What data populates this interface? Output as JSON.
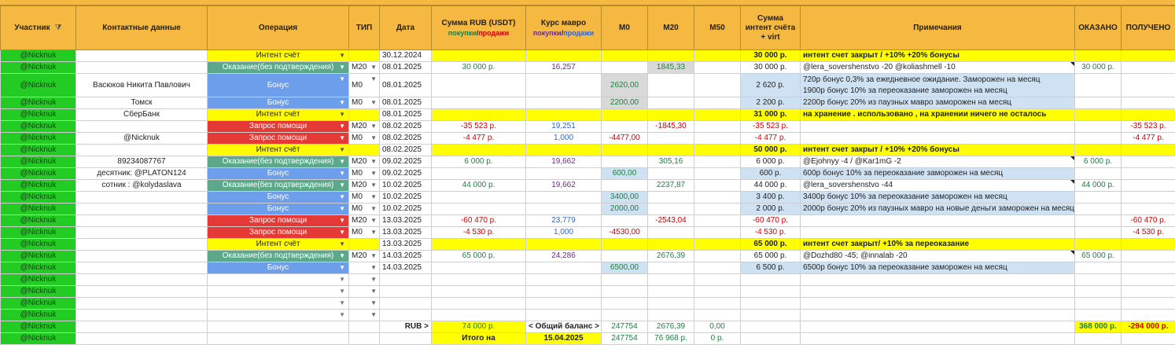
{
  "headers": {
    "participant": "Участник",
    "contacts": "Контактные данные",
    "operation": "Операция",
    "type": "ТИП",
    "date": "Дата",
    "sum_title": "Сумма RUB (USDT)",
    "sum_buy": "покупки",
    "sum_sell": "продажи",
    "rate_title": "Курс мавро",
    "rate_buy": "покупки",
    "rate_sell": "продажи",
    "m0": "М0",
    "m20": "М20",
    "m50": "М50",
    "intent_sum": "Сумма интент счёта + virt",
    "notes": "Примечания",
    "rendered": "ОКАЗАНО",
    "received": "ПОЛУЧЕНО"
  },
  "rows": [
    {
      "participant": "@Nicknuk",
      "contact": "",
      "op": "Интент счёт",
      "opkind": "intent",
      "typ": "",
      "date": "30.12.2024",
      "sum": "",
      "rate": "",
      "m0": "",
      "m20": "",
      "m50": "",
      "isum": "30 000 р.",
      "note": "интент счет закрыт /  +10%  +20% бонусы",
      "rendered": "",
      "received": "",
      "style": "yl"
    },
    {
      "participant": "@Nicknuk",
      "contact": "",
      "op": "Оказание(без подтверждения)",
      "opkind": "svc",
      "typ": "M20",
      "date": "08.01.2025",
      "sum": "30 000 р.",
      "rate": "16,257",
      "m0": "",
      "m20": "1845,33",
      "m50": "",
      "isum": "30 000 р.",
      "note": "@lera_sovershenstvo -20  @koliashmell -10",
      "rendered": "30 000 р.",
      "received": "",
      "style": "normal"
    },
    {
      "participant": "@Nicknuk",
      "contact": "Васюков Никита Павлович",
      "op": "Бонус",
      "opkind": "bonus",
      "typ": "M0",
      "date": "08.01.2025",
      "sum": "",
      "rate": "",
      "m0": "2620,00",
      "m20": "",
      "m50": "",
      "isum": "2 620 р.",
      "note": "720р  бонус 0,3% за ежедневное ожидание. Заморожен на месяц",
      "note2": "1900р бонус 10% за переоказание заморожен на месяц",
      "rendered": "",
      "received": "",
      "style": "bonus2"
    },
    {
      "participant": "@Nicknuk",
      "contact": "Томск",
      "op": "Бонус",
      "opkind": "bonus",
      "typ": "M0",
      "date": "08.01.2025",
      "sum": "",
      "rate": "",
      "m0": "2200,00",
      "m20": "",
      "m50": "",
      "isum": "2 200 р.",
      "note": "2200р бонус 20% из паузных мавро заморожен на месяц",
      "rendered": "",
      "received": "",
      "style": "bonus"
    },
    {
      "participant": "@Nicknuk",
      "contact": "СберБанк",
      "op": "Интент счёт",
      "opkind": "intent",
      "typ": "",
      "date": "08.01.2025",
      "sum": "",
      "rate": "",
      "m0": "",
      "m20": "",
      "m50": "",
      "isum": "31 000 р.",
      "note": "на хранение . использовано , на хранении ничего не осталось",
      "rendered": "",
      "received": "",
      "style": "yl"
    },
    {
      "participant": "@Nicknuk",
      "contact": "",
      "op": "Запрос помощи",
      "opkind": "help",
      "typ": "M20",
      "date": "08.02.2025",
      "sum": "-35 523 р.",
      "rate": "19,251",
      "m0": "",
      "m20": "-1845,30",
      "m50": "",
      "isum": "-35 523 р.",
      "note": "",
      "rendered": "",
      "received": "-35 523 р.",
      "style": "help"
    },
    {
      "participant": "@Nicknuk",
      "contact": "@Nicknuk",
      "op": "Запрос помощи",
      "opkind": "help",
      "typ": "M0",
      "date": "08.02.2025",
      "sum": "-4 477 р.",
      "rate": "1,000",
      "m0": "-4477,00",
      "m20": "",
      "m50": "",
      "isum": "-4 477 р.",
      "note": "",
      "rendered": "",
      "received": "-4 477 р.",
      "style": "help"
    },
    {
      "participant": "@Nicknuk",
      "contact": "",
      "op": "Интент счёт",
      "opkind": "intent",
      "typ": "",
      "date": "08.02.2025",
      "sum": "",
      "rate": "",
      "m0": "",
      "m20": "",
      "m50": "",
      "isum": "50 000 р.",
      "note": "интент счет закрыт /  +10%  +20% бонусы",
      "rendered": "",
      "received": "",
      "style": "yl"
    },
    {
      "participant": "@Nicknuk",
      "contact": "89234087767",
      "op": "Оказание(без подтверждения)",
      "opkind": "svc",
      "typ": "M20",
      "date": "09.02.2025",
      "sum": "6 000 р.",
      "rate": "19,662",
      "m0": "",
      "m20": "305,16",
      "m50": "",
      "isum": "6 000 р.",
      "note": "@Ejohnyy -4  / @Kar1mG -2",
      "rendered": "6 000 р.",
      "received": "",
      "style": "normal"
    },
    {
      "participant": "@Nicknuk",
      "contact": "десятник: @PLATON124",
      "op": "Бонус",
      "opkind": "bonus",
      "typ": "M0",
      "date": "09.02.2025",
      "sum": "",
      "rate": "",
      "m0": "600,00",
      "m20": "",
      "m50": "",
      "isum": "600 р.",
      "note": "600р бонус 10% за переоказание заморожен на месяц",
      "rendered": "",
      "received": "",
      "style": "bonus"
    },
    {
      "participant": "@Nicknuk",
      "contact": "сотник : @kolydaslava",
      "op": "Оказание(без подтверждения)",
      "opkind": "svc",
      "typ": "M20",
      "date": "10.02.2025",
      "sum": "44 000 р.",
      "rate": "19,662",
      "m0": "",
      "m20": "2237,87",
      "m50": "",
      "isum": "44 000 р.",
      "note": "@lera_sovershenstvo -44",
      "rendered": "44 000 р.",
      "received": "",
      "style": "normal"
    },
    {
      "participant": "@Nicknuk",
      "contact": "",
      "op": "Бонус",
      "opkind": "bonus",
      "typ": "M0",
      "date": "10.02.2025",
      "sum": "",
      "rate": "",
      "m0": "3400,00",
      "m20": "",
      "m50": "",
      "isum": "3 400 р.",
      "note": "3400р бонус 10% за переоказание заморожен на месяц",
      "rendered": "",
      "received": "",
      "style": "bonus"
    },
    {
      "participant": "@Nicknuk",
      "contact": "",
      "op": "Бонус",
      "opkind": "bonus",
      "typ": "M0",
      "date": "10.02.2025",
      "sum": "",
      "rate": "",
      "m0": "2000,00",
      "m20": "",
      "m50": "",
      "isum": "2 000 р.",
      "note": "2000р бонус 20% из паузных мавро на новые деньги заморожен на месяц",
      "rendered": "",
      "received": "",
      "style": "bonus"
    },
    {
      "participant": "@Nicknuk",
      "contact": "",
      "op": "Запрос помощи",
      "opkind": "help",
      "typ": "M20",
      "date": "13.03.2025",
      "sum": "-60 470 р.",
      "rate": "23,779",
      "m0": "",
      "m20": "-2543,04",
      "m50": "",
      "isum": "-60 470 р.",
      "note": "",
      "rendered": "",
      "received": "-60 470 р.",
      "style": "help"
    },
    {
      "participant": "@Nicknuk",
      "contact": "",
      "op": "Запрос помощи",
      "opkind": "help",
      "typ": "M0",
      "date": "13.03.2025",
      "sum": "-4 530 р.",
      "rate": "1,000",
      "m0": "-4530,00",
      "m20": "",
      "m50": "",
      "isum": "-4 530 р.",
      "note": "",
      "rendered": "",
      "received": "-4 530 р.",
      "style": "help"
    },
    {
      "participant": "@Nicknuk",
      "contact": "",
      "op": "Интент счёт",
      "opkind": "intent",
      "typ": "",
      "date": "13.03.2025",
      "sum": "",
      "rate": "",
      "m0": "",
      "m20": "",
      "m50": "",
      "isum": "65 000 р.",
      "note": " интент счет закрыт/ +10% за переоказание",
      "rendered": "",
      "received": "",
      "style": "yl"
    },
    {
      "participant": "@Nicknuk",
      "contact": "",
      "op": "Оказание(без подтверждения)",
      "opkind": "svc",
      "typ": "M20",
      "date": "14.03.2025",
      "sum": "65 000 р.",
      "rate": "24,286",
      "m0": "",
      "m20": "2676,39",
      "m50": "",
      "isum": "65 000 р.",
      "note": "@Dozhd80 -45; @innalab -20",
      "rendered": "65 000 р.",
      "received": "",
      "style": "normal"
    },
    {
      "participant": "@Nicknuk",
      "contact": "",
      "op": "Бонус",
      "opkind": "bonus",
      "typ": "",
      "date": "14.03.2025",
      "sum": "",
      "rate": "",
      "m0": "6500,00",
      "m20": "",
      "m50": "",
      "isum": "6 500 р.",
      "note": "6500р бонус 10% за переоказание заморожен на месяц",
      "rendered": "",
      "received": "",
      "style": "bonus"
    },
    {
      "participant": "@Nicknuk",
      "contact": "",
      "op": "",
      "opkind": "empty",
      "typ": "",
      "date": "",
      "sum": "",
      "rate": "",
      "m0": "",
      "m20": "",
      "m50": "",
      "isum": "",
      "note": "",
      "rendered": "",
      "received": "",
      "style": "empty"
    },
    {
      "participant": "@Nicknuk",
      "contact": "",
      "op": "",
      "opkind": "empty",
      "typ": "",
      "date": "",
      "sum": "",
      "rate": "",
      "m0": "",
      "m20": "",
      "m50": "",
      "isum": "",
      "note": "",
      "rendered": "",
      "received": "",
      "style": "empty"
    },
    {
      "participant": "@Nicknuk",
      "contact": "",
      "op": "",
      "opkind": "empty",
      "typ": "",
      "date": "",
      "sum": "",
      "rate": "",
      "m0": "",
      "m20": "",
      "m50": "",
      "isum": "",
      "note": "",
      "rendered": "",
      "received": "",
      "style": "empty"
    },
    {
      "participant": "@Nicknuk",
      "contact": "",
      "op": "",
      "opkind": "empty",
      "typ": "",
      "date": "",
      "sum": "",
      "rate": "",
      "m0": "",
      "m20": "",
      "m50": "",
      "isum": "",
      "note": "",
      "rendered": "",
      "received": "",
      "style": "empty"
    }
  ],
  "totals": {
    "participant": "@Nicknuk",
    "rub_label": "RUB >",
    "rub_sum": "74 000 р.",
    "balance_label": "< Общий баланс >",
    "m0": "247754",
    "m20": "2676,39",
    "m50": "0,00",
    "rendered": "368 000 р.",
    "received": "-294 000 р."
  },
  "final": {
    "participant": "@Nicknuk",
    "itogo_label": "Итого на",
    "itogo_date": "15.04.2025",
    "m0": "247754",
    "m20": "76 968 р.",
    "m50": "0 р."
  }
}
